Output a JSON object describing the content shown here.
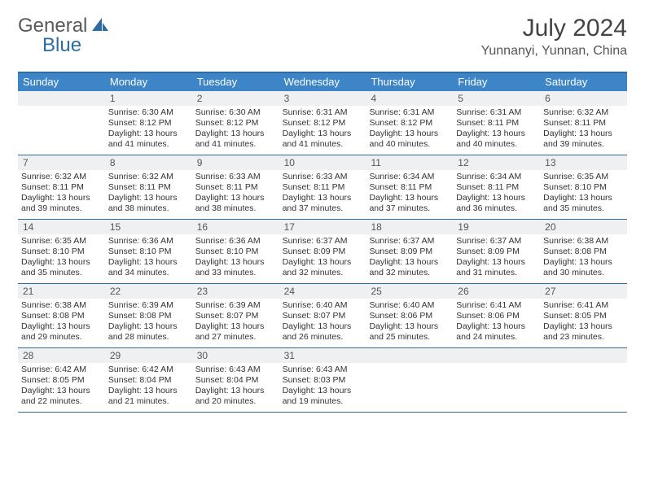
{
  "brand": {
    "general": "General",
    "blue": "Blue"
  },
  "title": "July 2024",
  "location": "Yunnanyi, Yunnan, China",
  "colors": {
    "header_bg": "#3d85c6",
    "rule": "#2d6ca2",
    "daynum_bg": "#eef0f1",
    "text": "#333333"
  },
  "weekdays": [
    "Sunday",
    "Monday",
    "Tuesday",
    "Wednesday",
    "Thursday",
    "Friday",
    "Saturday"
  ],
  "weeks": [
    {
      "nums": [
        "",
        "1",
        "2",
        "3",
        "4",
        "5",
        "6"
      ],
      "cells": [
        null,
        {
          "sunrise": "6:30 AM",
          "sunset": "8:12 PM",
          "daylight": "13 hours and 41 minutes."
        },
        {
          "sunrise": "6:30 AM",
          "sunset": "8:12 PM",
          "daylight": "13 hours and 41 minutes."
        },
        {
          "sunrise": "6:31 AM",
          "sunset": "8:12 PM",
          "daylight": "13 hours and 41 minutes."
        },
        {
          "sunrise": "6:31 AM",
          "sunset": "8:12 PM",
          "daylight": "13 hours and 40 minutes."
        },
        {
          "sunrise": "6:31 AM",
          "sunset": "8:11 PM",
          "daylight": "13 hours and 40 minutes."
        },
        {
          "sunrise": "6:32 AM",
          "sunset": "8:11 PM",
          "daylight": "13 hours and 39 minutes."
        }
      ]
    },
    {
      "nums": [
        "7",
        "8",
        "9",
        "10",
        "11",
        "12",
        "13"
      ],
      "cells": [
        {
          "sunrise": "6:32 AM",
          "sunset": "8:11 PM",
          "daylight": "13 hours and 39 minutes."
        },
        {
          "sunrise": "6:32 AM",
          "sunset": "8:11 PM",
          "daylight": "13 hours and 38 minutes."
        },
        {
          "sunrise": "6:33 AM",
          "sunset": "8:11 PM",
          "daylight": "13 hours and 38 minutes."
        },
        {
          "sunrise": "6:33 AM",
          "sunset": "8:11 PM",
          "daylight": "13 hours and 37 minutes."
        },
        {
          "sunrise": "6:34 AM",
          "sunset": "8:11 PM",
          "daylight": "13 hours and 37 minutes."
        },
        {
          "sunrise": "6:34 AM",
          "sunset": "8:11 PM",
          "daylight": "13 hours and 36 minutes."
        },
        {
          "sunrise": "6:35 AM",
          "sunset": "8:10 PM",
          "daylight": "13 hours and 35 minutes."
        }
      ]
    },
    {
      "nums": [
        "14",
        "15",
        "16",
        "17",
        "18",
        "19",
        "20"
      ],
      "cells": [
        {
          "sunrise": "6:35 AM",
          "sunset": "8:10 PM",
          "daylight": "13 hours and 35 minutes."
        },
        {
          "sunrise": "6:36 AM",
          "sunset": "8:10 PM",
          "daylight": "13 hours and 34 minutes."
        },
        {
          "sunrise": "6:36 AM",
          "sunset": "8:10 PM",
          "daylight": "13 hours and 33 minutes."
        },
        {
          "sunrise": "6:37 AM",
          "sunset": "8:09 PM",
          "daylight": "13 hours and 32 minutes."
        },
        {
          "sunrise": "6:37 AM",
          "sunset": "8:09 PM",
          "daylight": "13 hours and 32 minutes."
        },
        {
          "sunrise": "6:37 AM",
          "sunset": "8:09 PM",
          "daylight": "13 hours and 31 minutes."
        },
        {
          "sunrise": "6:38 AM",
          "sunset": "8:08 PM",
          "daylight": "13 hours and 30 minutes."
        }
      ]
    },
    {
      "nums": [
        "21",
        "22",
        "23",
        "24",
        "25",
        "26",
        "27"
      ],
      "cells": [
        {
          "sunrise": "6:38 AM",
          "sunset": "8:08 PM",
          "daylight": "13 hours and 29 minutes."
        },
        {
          "sunrise": "6:39 AM",
          "sunset": "8:08 PM",
          "daylight": "13 hours and 28 minutes."
        },
        {
          "sunrise": "6:39 AM",
          "sunset": "8:07 PM",
          "daylight": "13 hours and 27 minutes."
        },
        {
          "sunrise": "6:40 AM",
          "sunset": "8:07 PM",
          "daylight": "13 hours and 26 minutes."
        },
        {
          "sunrise": "6:40 AM",
          "sunset": "8:06 PM",
          "daylight": "13 hours and 25 minutes."
        },
        {
          "sunrise": "6:41 AM",
          "sunset": "8:06 PM",
          "daylight": "13 hours and 24 minutes."
        },
        {
          "sunrise": "6:41 AM",
          "sunset": "8:05 PM",
          "daylight": "13 hours and 23 minutes."
        }
      ]
    },
    {
      "nums": [
        "28",
        "29",
        "30",
        "31",
        "",
        "",
        ""
      ],
      "cells": [
        {
          "sunrise": "6:42 AM",
          "sunset": "8:05 PM",
          "daylight": "13 hours and 22 minutes."
        },
        {
          "sunrise": "6:42 AM",
          "sunset": "8:04 PM",
          "daylight": "13 hours and 21 minutes."
        },
        {
          "sunrise": "6:43 AM",
          "sunset": "8:04 PM",
          "daylight": "13 hours and 20 minutes."
        },
        {
          "sunrise": "6:43 AM",
          "sunset": "8:03 PM",
          "daylight": "13 hours and 19 minutes."
        },
        null,
        null,
        null
      ]
    }
  ],
  "labels": {
    "sunrise": "Sunrise:",
    "sunset": "Sunset:",
    "daylight": "Daylight:"
  }
}
